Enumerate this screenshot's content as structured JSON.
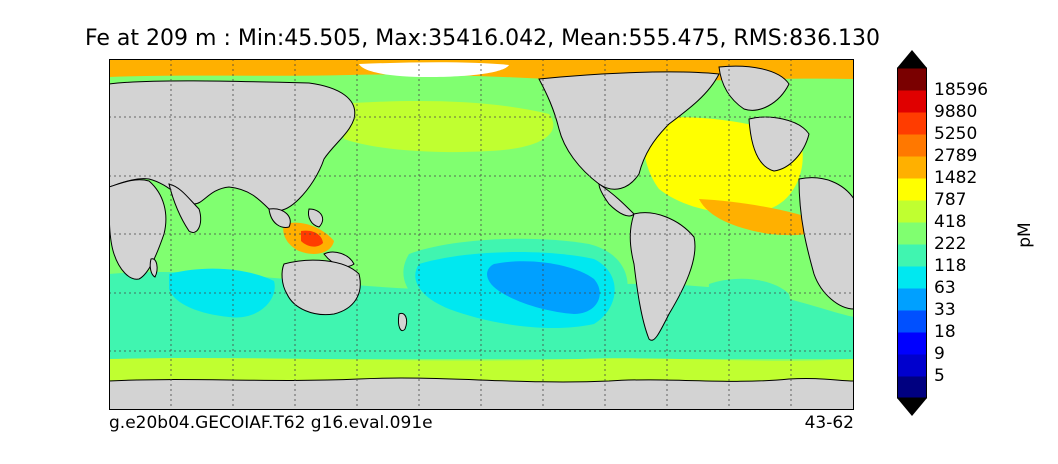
{
  "title": "Fe at 209 m : Min:45.505, Max:35416.042, Mean:555.475, RMS:836.130",
  "caption_left": "g.e20b04.GECOIAF.T62 g16.eval.091e",
  "caption_right": "43-62",
  "colorbar": {
    "unit": "pM",
    "ticks": [
      "18596",
      "9880",
      "5250",
      "2789",
      "1482",
      "787",
      "418",
      "222",
      "118",
      "63",
      "33",
      "18",
      "9",
      "5"
    ],
    "colors_bottom_to_top": [
      "#000080",
      "#0000cd",
      "#0000ff",
      "#0050ff",
      "#00a0ff",
      "#00e8f0",
      "#40f5b0",
      "#80ff70",
      "#c0ff30",
      "#ffff00",
      "#ffb000",
      "#ff7800",
      "#ff3c00",
      "#e00000",
      "#7a0000"
    ],
    "under_color": "#000000",
    "over_color": "#000000"
  },
  "colors": {
    "land": "#d3d3d3",
    "ice_white": "#ffffff",
    "coastline": "#000000",
    "gridline": "#444444"
  }
}
